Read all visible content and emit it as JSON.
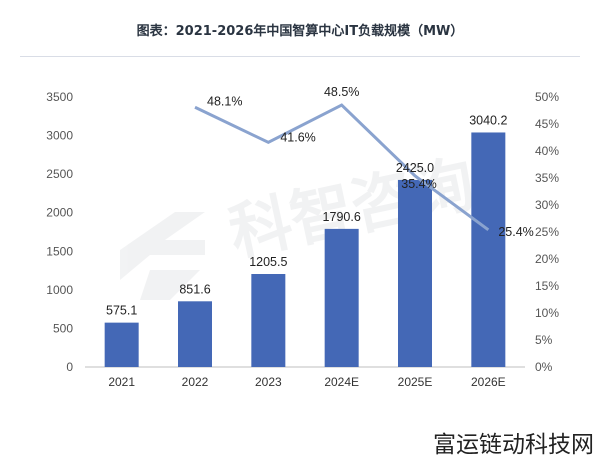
{
  "chart_data": {
    "type": "bar",
    "title": "图表：2021-2026年中国智算中心IT负载规模（MW）",
    "categories": [
      "2021",
      "2022",
      "2023",
      "2024E",
      "2025E",
      "2026E"
    ],
    "series": [
      {
        "values": [
          575.1,
          851.6,
          1205.5,
          1790.6,
          2425.0,
          3040.2
        ],
        "labels": [
          "575.1",
          "851.6",
          "1205.5",
          "1790.6",
          "2425.0",
          "3040.2"
        ]
      },
      {
        "type": "line",
        "axis": "right",
        "x": [
          "2022",
          "2023",
          "2024E",
          "2025E",
          "2026E"
        ],
        "values": [
          48.1,
          41.6,
          48.5,
          35.4,
          25.4
        ],
        "labels": [
          "48.1%",
          "41.6%",
          "48.5%",
          "35.4%",
          "25.4%"
        ]
      }
    ],
    "left_axis": {
      "ylim": [
        0,
        3500
      ],
      "ticks": [
        "0",
        "500",
        "1000",
        "1500",
        "2000",
        "2500",
        "3000",
        "3500"
      ]
    },
    "right_axis": {
      "ylim": [
        0,
        50
      ],
      "ticks": [
        "0%",
        "5%",
        "10%",
        "15%",
        "20%",
        "25%",
        "30%",
        "35%",
        "40%",
        "45%",
        "50%"
      ]
    },
    "grid": false,
    "colors": {
      "bar": "#4468b6",
      "line": "#8aa3cf",
      "axis_text": "#555555",
      "title": "#2a3441"
    }
  },
  "watermark": {
    "logo_text": "科智咨询",
    "footer_text": "富运链动科技网"
  }
}
